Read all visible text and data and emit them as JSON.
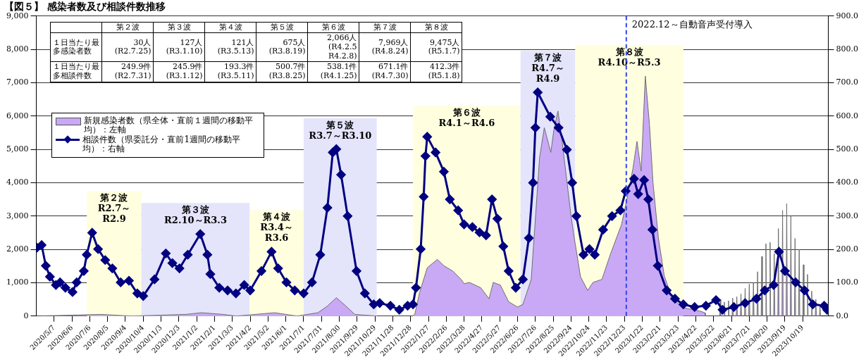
{
  "chart_data": {
    "type": "area",
    "title": "【図５】 感染者数及び相談件数推移",
    "xlim": [
      "2020-04-07",
      "2023-12-01"
    ],
    "xticks": [
      {
        "value": "2020-05-07",
        "label": "2020/5/7"
      },
      {
        "value": "2020-06-06",
        "label": "2020/6/6"
      },
      {
        "value": "2020-07-06",
        "label": "2020/7/6"
      },
      {
        "value": "2020-08-05",
        "label": "2020/8/5"
      },
      {
        "value": "2020-09-04",
        "label": "2020/9/4"
      },
      {
        "value": "2020-10-04",
        "label": "2020/10/4"
      },
      {
        "value": "2020-11-03",
        "label": "2020/11/3"
      },
      {
        "value": "2020-12-03",
        "label": "2020/12/3"
      },
      {
        "value": "2021-01-02",
        "label": "2021/1/2"
      },
      {
        "value": "2021-02-01",
        "label": "2021/2/1"
      },
      {
        "value": "2021-03-03",
        "label": "2021/3/3"
      },
      {
        "value": "2021-04-02",
        "label": "2021/4/2"
      },
      {
        "value": "2021-05-02",
        "label": "2021/5/2"
      },
      {
        "value": "2021-06-01",
        "label": "2021/6/1"
      },
      {
        "value": "2021-07-01",
        "label": "2021/7/1"
      },
      {
        "value": "2021-07-31",
        "label": "2021/7/31"
      },
      {
        "value": "2021-08-30",
        "label": "2021/8/30"
      },
      {
        "value": "2021-09-29",
        "label": "2021/9/29"
      },
      {
        "value": "2021-10-29",
        "label": "2021/10/29"
      },
      {
        "value": "2021-11-28",
        "label": "2021/11/28"
      },
      {
        "value": "2021-12-28",
        "label": "2021/12/28"
      },
      {
        "value": "2022-01-27",
        "label": "2022/1/27"
      },
      {
        "value": "2022-02-26",
        "label": "2022/2/26"
      },
      {
        "value": "2022-03-28",
        "label": "2022/3/28"
      },
      {
        "value": "2022-04-27",
        "label": "2022/4/27"
      },
      {
        "value": "2022-05-27",
        "label": "2022/5/27"
      },
      {
        "value": "2022-06-26",
        "label": "2022/6/26"
      },
      {
        "value": "2022-07-26",
        "label": "2022/7/26"
      },
      {
        "value": "2022-08-25",
        "label": "2022/8/25"
      },
      {
        "value": "2022-09-24",
        "label": "2022/9/24"
      },
      {
        "value": "2022-10-24",
        "label": "2022/10/24"
      },
      {
        "value": "2022-11-23",
        "label": "2022/11/23"
      },
      {
        "value": "2022-12-23",
        "label": "2022/12/23"
      },
      {
        "value": "2023-01-22",
        "label": "2023/1/22"
      },
      {
        "value": "2023-02-21",
        "label": "2023/2/21"
      },
      {
        "value": "2023-03-23",
        "label": "2023/3/23"
      },
      {
        "value": "2023-04-22",
        "label": "2023/4/22"
      },
      {
        "value": "2023-05-22",
        "label": "2023/5/22"
      },
      {
        "value": "2023-06-21",
        "label": "2023/6/21"
      },
      {
        "value": "2023-07-21",
        "label": "2023/7/21"
      },
      {
        "value": "2023-08-20",
        "label": "2023/8/20"
      },
      {
        "value": "2023-09-19",
        "label": "2023/9/19"
      },
      {
        "value": "2023-10-19",
        "label": "2023/10/19"
      }
    ],
    "ylim": [
      0,
      9000
    ],
    "yticks": [
      {
        "value": 0,
        "label": "0"
      },
      {
        "value": 1000,
        "label": "1,000"
      },
      {
        "value": 2000,
        "label": "2,000"
      },
      {
        "value": 3000,
        "label": "3,000"
      },
      {
        "value": 4000,
        "label": "4,000"
      },
      {
        "value": 5000,
        "label": "5,000"
      },
      {
        "value": 6000,
        "label": "6,000"
      },
      {
        "value": 7000,
        "label": "7,000"
      },
      {
        "value": 8000,
        "label": "8,000"
      },
      {
        "value": 9000,
        "label": "9,000"
      }
    ],
    "y2lim": [
      0,
      900
    ],
    "y2ticks": [
      {
        "value": 0,
        "label": "0.0"
      },
      {
        "value": 100,
        "label": "100.0"
      },
      {
        "value": 200,
        "label": "200.0"
      },
      {
        "value": 300,
        "label": "300.0"
      },
      {
        "value": 400,
        "label": "400.0"
      },
      {
        "value": 500,
        "label": "500.0"
      },
      {
        "value": 600,
        "label": "600.0"
      },
      {
        "value": 700,
        "label": "700.0"
      },
      {
        "value": 800,
        "label": "800.0"
      },
      {
        "value": 900,
        "label": "900.0"
      }
    ],
    "grid": "y",
    "legend": "top left",
    "series": [
      {
        "name": "新規感染者数（県全体・直前１週間の移動平均）：左軸",
        "color": "#c9a9f5",
        "x": [
          "2020-04-08",
          "2020-07-25",
          "2020-09-15",
          "2020-12-15",
          "2021-01-10",
          "2021-02-15",
          "2021-03-10",
          "2021-05-13",
          "2021-06-20",
          "2021-07-25",
          "2021-08-10",
          "2021-08-25",
          "2021-09-10",
          "2021-09-25",
          "2021-11-01",
          "2021-12-31",
          "2022-01-04",
          "2022-01-12",
          "2022-01-25",
          "2022-02-11",
          "2022-02-22",
          "2022-03-09",
          "2022-03-23",
          "2022-03-28",
          "2022-04-06",
          "2022-04-25",
          "2022-05-09",
          "2022-05-16",
          "2022-05-28",
          "2022-06-11",
          "2022-06-26",
          "2022-07-05",
          "2022-07-19",
          "2022-08-02",
          "2022-08-10",
          "2022-08-21",
          "2022-08-26",
          "2022-09-02",
          "2022-09-09",
          "2022-09-24",
          "2022-10-01",
          "2022-10-10",
          "2022-10-22",
          "2022-10-31",
          "2022-11-15",
          "2022-11-29",
          "2022-12-18",
          "2022-12-27",
          "2023-01-06",
          "2023-01-13",
          "2023-01-20",
          "2023-01-27",
          "2023-02-03",
          "2023-02-09",
          "2023-02-18",
          "2023-02-28",
          "2023-03-14",
          "2023-04-02",
          "2023-04-29",
          "2023-05-07",
          "2023-05-08",
          "2023-06-01",
          "2023-06-02",
          "2023-06-03",
          "2023-06-08",
          "2023-06-09",
          "2023-06-10",
          "2023-06-15",
          "2023-06-16",
          "2023-06-17",
          "2023-06-22",
          "2023-06-23",
          "2023-06-24",
          "2023-06-29",
          "2023-06-30",
          "2023-07-01",
          "2023-07-06",
          "2023-07-07",
          "2023-07-08",
          "2023-07-13",
          "2023-07-14",
          "2023-07-15",
          "2023-07-20",
          "2023-07-21",
          "2023-07-22",
          "2023-07-27",
          "2023-07-28",
          "2023-07-29",
          "2023-08-03",
          "2023-08-04",
          "2023-08-05",
          "2023-08-10",
          "2023-08-11",
          "2023-08-12",
          "2023-08-17",
          "2023-08-18",
          "2023-08-19",
          "2023-08-24",
          "2023-08-25",
          "2023-08-26",
          "2023-08-31",
          "2023-09-01",
          "2023-09-02",
          "2023-09-07",
          "2023-09-08",
          "2023-09-09",
          "2023-09-14",
          "2023-09-15",
          "2023-09-16",
          "2023-09-21",
          "2023-09-22",
          "2023-09-23",
          "2023-09-28",
          "2023-09-29",
          "2023-09-30",
          "2023-10-05",
          "2023-10-06",
          "2023-10-07",
          "2023-10-12",
          "2023-10-13",
          "2023-10-14",
          "2023-10-19",
          "2023-10-20",
          "2023-10-21",
          "2023-10-26",
          "2023-10-27",
          "2023-10-28",
          "2023-11-02",
          "2023-11-03",
          "2023-11-04",
          "2023-11-09",
          "2023-11-10",
          "2023-11-11",
          "2023-11-16",
          "2023-11-17",
          "2023-11-18"
        ],
        "values": [
          0,
          50,
          0,
          50,
          100,
          50,
          0,
          100,
          0,
          100,
          300,
          550,
          300,
          50,
          0,
          0,
          50,
          700,
          1450,
          1700,
          1510,
          1350,
          1100,
          970,
          1010,
          850,
          520,
          1010,
          930,
          430,
          270,
          350,
          1100,
          4740,
          5650,
          4910,
          5570,
          6150,
          5240,
          3000,
          2170,
          1180,
          770,
          1010,
          1100,
          1840,
          2750,
          3500,
          4410,
          5240,
          4350,
          7200,
          5750,
          4000,
          2350,
          1200,
          500,
          250,
          150,
          100,
          0,
          0,
          500,
          0,
          0,
          420,
          0,
          0,
          460,
          0,
          0,
          540,
          0,
          0,
          580,
          0,
          0,
          670,
          0,
          0,
          830,
          0,
          0,
          960,
          0,
          0,
          1000,
          0,
          0,
          1330,
          0,
          0,
          1790,
          0,
          0,
          2170,
          0,
          0,
          2210,
          0,
          0,
          1875,
          0,
          0,
          2625,
          0,
          0,
          3170,
          0,
          0,
          3375,
          0,
          0,
          3000,
          0,
          0,
          2330,
          0,
          0,
          2000,
          0,
          0,
          1540,
          0,
          0,
          1250,
          0,
          0,
          750,
          0,
          0,
          500,
          0,
          0,
          300,
          0
        ]
      },
      {
        "type": "line",
        "name": "相談件数（県委託分・直前1週間の移動平均）：右軸",
        "color": "#000080",
        "axis": "y2",
        "marker": "diamond",
        "x": [
          "2020-04-08",
          "2020-04-16",
          "2020-04-23",
          "2020-04-30",
          "2020-05-10",
          "2020-05-17",
          "2020-05-26",
          "2020-06-07",
          "2020-06-14",
          "2020-06-26",
          "2020-07-01",
          "2020-07-10",
          "2020-07-20",
          "2020-08-01",
          "2020-08-13",
          "2020-08-27",
          "2020-09-10",
          "2020-09-24",
          "2020-10-04",
          "2020-10-23",
          "2020-11-11",
          "2020-11-22",
          "2020-12-04",
          "2020-12-18",
          "2021-01-08",
          "2021-01-20",
          "2021-01-25",
          "2021-02-09",
          "2021-02-23",
          "2021-03-09",
          "2021-03-23",
          "2021-04-02",
          "2021-04-21",
          "2021-05-08",
          "2021-05-19",
          "2021-06-02",
          "2021-06-16",
          "2021-07-01",
          "2021-07-15",
          "2021-07-29",
          "2021-08-10",
          "2021-08-19",
          "2021-08-25",
          "2021-09-02",
          "2021-09-13",
          "2021-09-28",
          "2021-10-12",
          "2021-10-27",
          "2021-11-06",
          "2021-11-24",
          "2021-12-09",
          "2021-12-23",
          "2022-01-01",
          "2022-01-06",
          "2022-01-14",
          "2022-01-19",
          "2022-01-22",
          "2022-01-25",
          "2022-02-08",
          "2022-02-22",
          "2022-03-04",
          "2022-03-18",
          "2022-03-28",
          "2022-04-11",
          "2022-04-23",
          "2022-05-04",
          "2022-05-14",
          "2022-05-23",
          "2022-06-02",
          "2022-06-11",
          "2022-06-23",
          "2022-07-05",
          "2022-07-15",
          "2022-07-22",
          "2022-07-26",
          "2022-07-30",
          "2022-08-20",
          "2022-09-03",
          "2022-09-17",
          "2022-09-26",
          "2022-10-03",
          "2022-10-15",
          "2022-10-25",
          "2022-11-03",
          "2022-11-17",
          "2022-12-02",
          "2022-12-16",
          "2022-12-25",
          "2023-01-08",
          "2023-01-15",
          "2023-01-25",
          "2023-02-01",
          "2023-02-08",
          "2023-02-17",
          "2023-03-04",
          "2023-03-18",
          "2023-04-01",
          "2023-04-20",
          "2023-05-09",
          "2023-05-26",
          "2023-06-06",
          "2023-06-25",
          "2023-07-14",
          "2023-08-02",
          "2023-08-16",
          "2023-08-31",
          "2023-09-09",
          "2023-09-19",
          "2023-10-07",
          "2023-10-22",
          "2023-11-05",
          "2023-11-24",
          "2023-11-29"
        ],
        "values": [
          205,
          213,
          151,
          118,
          93,
          101,
          85,
          72,
          101,
          135,
          184,
          250,
          201,
          168,
          143,
          101,
          106,
          68,
          60,
          110,
          188,
          159,
          143,
          184,
          246,
          184,
          126,
          85,
          77,
          68,
          93,
          77,
          135,
          193,
          143,
          101,
          77,
          68,
          101,
          184,
          325,
          491,
          501,
          424,
          300,
          135,
          68,
          35,
          39,
          31,
          19,
          31,
          35,
          85,
          201,
          358,
          480,
          538,
          491,
          433,
          350,
          317,
          275,
          267,
          251,
          242,
          350,
          292,
          209,
          135,
          85,
          110,
          234,
          400,
          565,
          671,
          598,
          565,
          499,
          400,
          300,
          184,
          201,
          184,
          259,
          300,
          317,
          375,
          412,
          366,
          408,
          350,
          259,
          151,
          77,
          52,
          35,
          27,
          31,
          48,
          19,
          27,
          39,
          52,
          77,
          93,
          193,
          135,
          101,
          77,
          35,
          31,
          19
        ]
      }
    ],
    "bands": [
      {
        "axis": "x",
        "from": "2020-07-01",
        "to": "2020-10-01",
        "label": "第２波\nR2.7～\nR2.9",
        "color": "#ffffe0"
      },
      {
        "axis": "x",
        "from": "2020-10-01",
        "to": "2021-04-01",
        "label": "第３波\nR2.10～R3.3",
        "color": "#e4e4fb"
      },
      {
        "axis": "x",
        "from": "2021-04-01",
        "to": "2021-07-01",
        "label": "第４波\nR3.4～\nR3.6",
        "color": "#ffffe0"
      },
      {
        "axis": "x",
        "from": "2021-07-01",
        "to": "2021-11-01",
        "label": "第５波\nR3.7～R3.10",
        "color": "#e4e4fb"
      },
      {
        "axis": "x",
        "from": "2022-01-01",
        "to": "2022-07-01",
        "label": "第６波\nR4.1～R4.6",
        "color": "#ffffe0"
      },
      {
        "axis": "x",
        "from": "2022-07-01",
        "to": "2022-10-01",
        "label": "第７波\nR4.7～\nR4.9",
        "color": "#e4e4fb"
      },
      {
        "axis": "x",
        "from": "2022-10-01",
        "to": "2023-04-01",
        "label": "第８波\nR4.10～R5.3",
        "color": "#ffffe0"
      }
    ],
    "ref_lines": [
      {
        "axis": "x",
        "value": "2022-12-26",
        "label": "2022.12～自動音声受付導入",
        "color": "#3344ee",
        "line_style": "dashed"
      }
    ],
    "annotations": [
      "第２波",
      "第３波",
      "第４波",
      "第５波",
      "第６波",
      "第７波",
      "第８波",
      "１日当たり最多感染者数",
      "30人\n(R2.7.25)",
      "127人\n(R3.1.10)",
      "121人\n(R3.5.13)",
      "675人\n(R3.8.19)",
      "2,066人\n(R4.2.5\nR4.2.8)",
      "7,969人\n(R4.8.24)",
      "9,475人\n(R5.1.7)",
      "１日当たり最多相談件数",
      "249.9件\n(R2.7.31)",
      "245.9件\n(R3.1.12)",
      "193.3件\n(R3.5.11)",
      "500.7件\n(R3.8.25)",
      "538.1件\n(R4.1.25)",
      "671.1件\n(R4.7.30)",
      "412.3件\n(R5.1.8)"
    ]
  }
}
